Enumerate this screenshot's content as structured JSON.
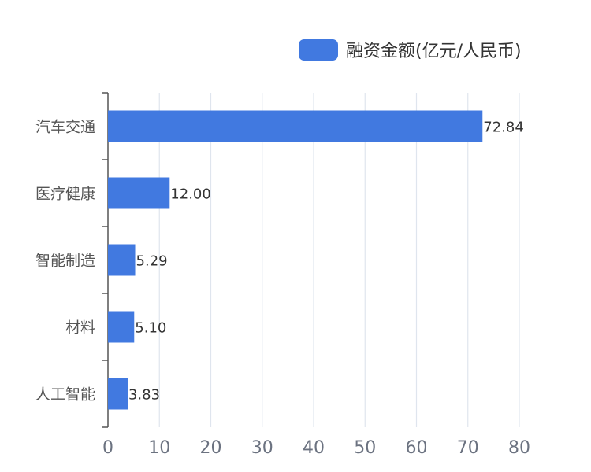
{
  "chart_data": {
    "type": "bar",
    "orientation": "horizontal",
    "categories": [
      "汽车交通",
      "医疗健康",
      "智能制造",
      "材料",
      "人工智能"
    ],
    "series": [
      {
        "name": "融资金额(亿元/人民币)",
        "values": [
          72.84,
          12.0,
          5.29,
          5.1,
          3.83
        ],
        "value_labels": [
          "72.84",
          "12.00",
          "5.29",
          "5.10",
          "3.83"
        ],
        "color": "#4179e0"
      }
    ],
    "xlim": [
      0,
      80
    ],
    "xticks": [
      0,
      10,
      20,
      30,
      40,
      50,
      60,
      70,
      80
    ],
    "grid": true,
    "legend_position": "top-right",
    "colors": {
      "grid": "#dfe5ee",
      "axis": "#555555",
      "tick_label": "#6b7280",
      "category_label": "#555555",
      "value_label": "#333333",
      "legend_text": "#333333"
    }
  }
}
